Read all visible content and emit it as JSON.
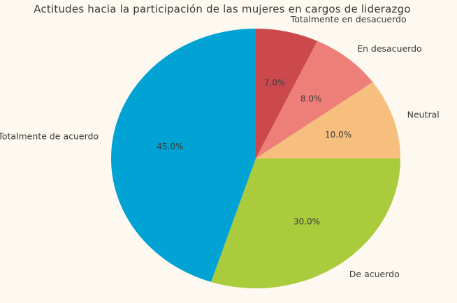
{
  "chart_data": {
    "type": "pie",
    "title": "Actitudes hacia la participación de las mujeres en cargos de liderazgo",
    "categories": [
      "Totalmente en desacuerdo",
      "En desacuerdo",
      "Neutral",
      "De acuerdo",
      "Totalmente de acuerdo"
    ],
    "values": [
      7.0,
      8.0,
      10.0,
      30.0,
      45.0
    ],
    "percent_labels": [
      "7.0%",
      "8.0%",
      "10.0%",
      "30.0%",
      "45.0%"
    ],
    "colors": [
      "#cb494d",
      "#ee7e78",
      "#f7bf7e",
      "#a9cb3c",
      "#00a3d4"
    ],
    "start_angle_deg": 90,
    "direction": "clockwise",
    "label_distance": 1.1,
    "pct_distance": 0.6,
    "background_color": "#fdf9f0",
    "text_color": "#3a3a3a",
    "legend": "none",
    "grid": false
  }
}
